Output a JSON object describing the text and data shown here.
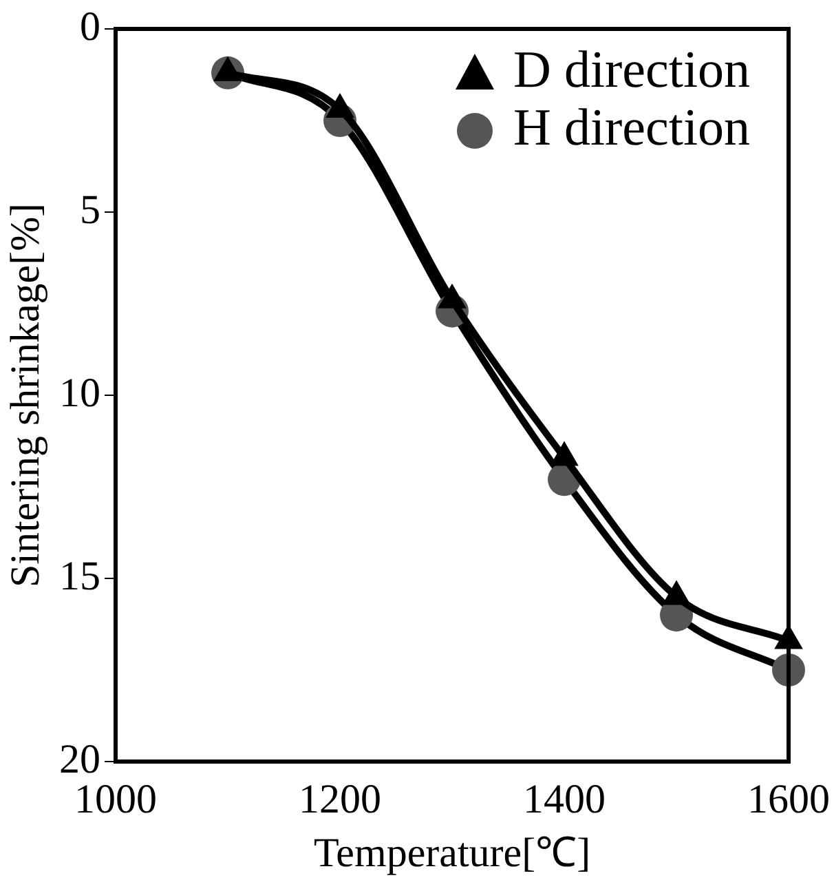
{
  "chart_data": {
    "type": "line",
    "xlabel": "Temperature[℃]",
    "ylabel": "Sintering shrinkage[%]",
    "x": [
      1100,
      1200,
      1300,
      1400,
      1500,
      1600
    ],
    "series": [
      {
        "name": "D direction",
        "color": "#000000",
        "marker": "triangle",
        "values": [
          1.2,
          2.2,
          7.4,
          11.7,
          15.5,
          16.7
        ]
      },
      {
        "name": "H direction",
        "color": "#555555",
        "marker": "circle",
        "values": [
          1.2,
          2.5,
          7.7,
          12.3,
          16.0,
          17.5
        ]
      }
    ],
    "xlim": [
      1000,
      1600
    ],
    "xticks": [
      1000,
      1200,
      1400,
      1600
    ],
    "ylim": [
      20,
      0
    ],
    "yticks": [
      0,
      5,
      10,
      15,
      20
    ],
    "grid": false,
    "legend": "top right"
  }
}
